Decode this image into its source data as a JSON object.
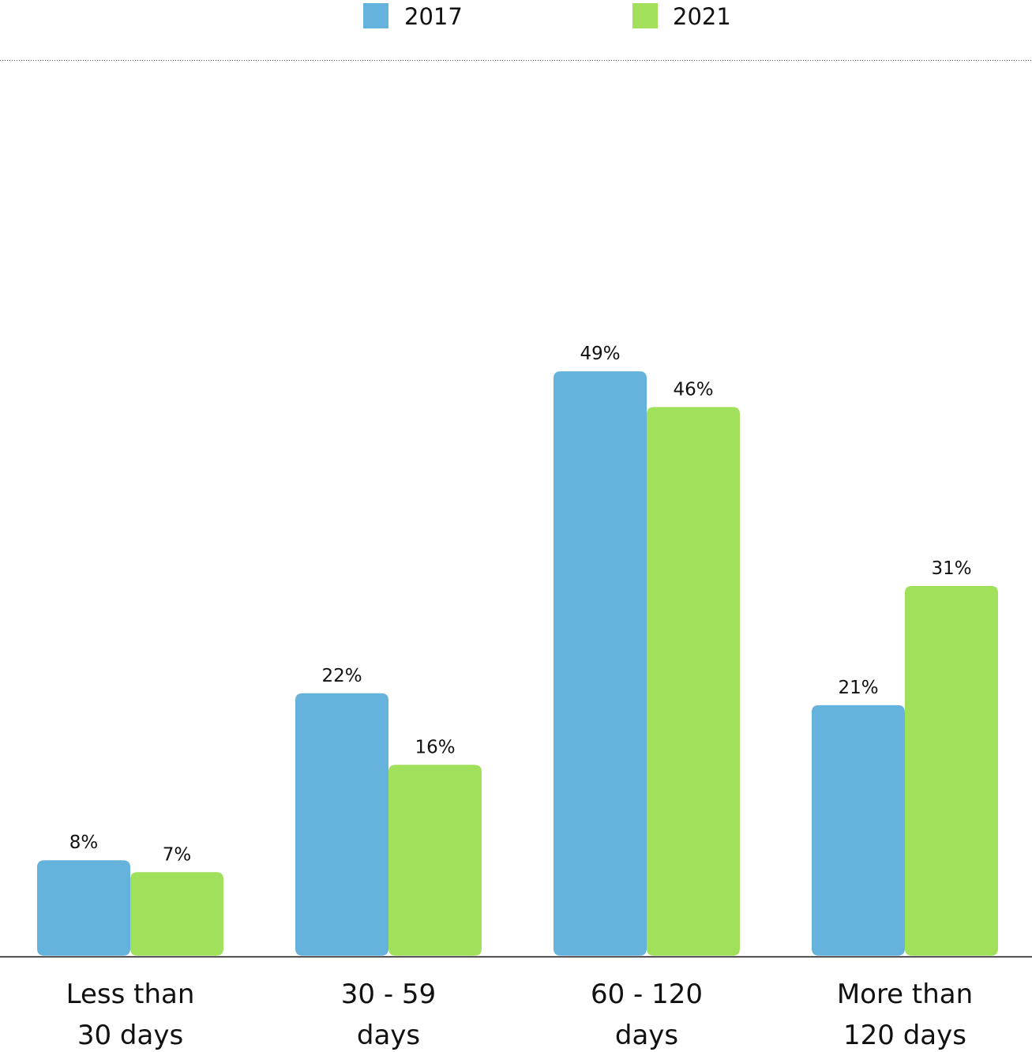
{
  "chart_data": {
    "type": "bar",
    "categories": [
      [
        "Less than",
        "30 days"
      ],
      [
        "30 - 59",
        "days"
      ],
      [
        "60 - 120",
        "days"
      ],
      [
        "More than",
        "120 days"
      ]
    ],
    "series": [
      {
        "name": "2017",
        "color": "#65b2dc",
        "values": [
          8,
          22,
          49,
          21
        ],
        "labels": [
          "8%",
          "22%",
          "49%",
          "21%"
        ]
      },
      {
        "name": "2021",
        "color": "#a0e05a",
        "values": [
          7,
          16,
          46,
          31
        ],
        "labels": [
          "7%",
          "16%",
          "46%",
          "31%"
        ]
      }
    ],
    "ylim": [
      0,
      80
    ],
    "legend_position": "top-center",
    "grid": false
  }
}
